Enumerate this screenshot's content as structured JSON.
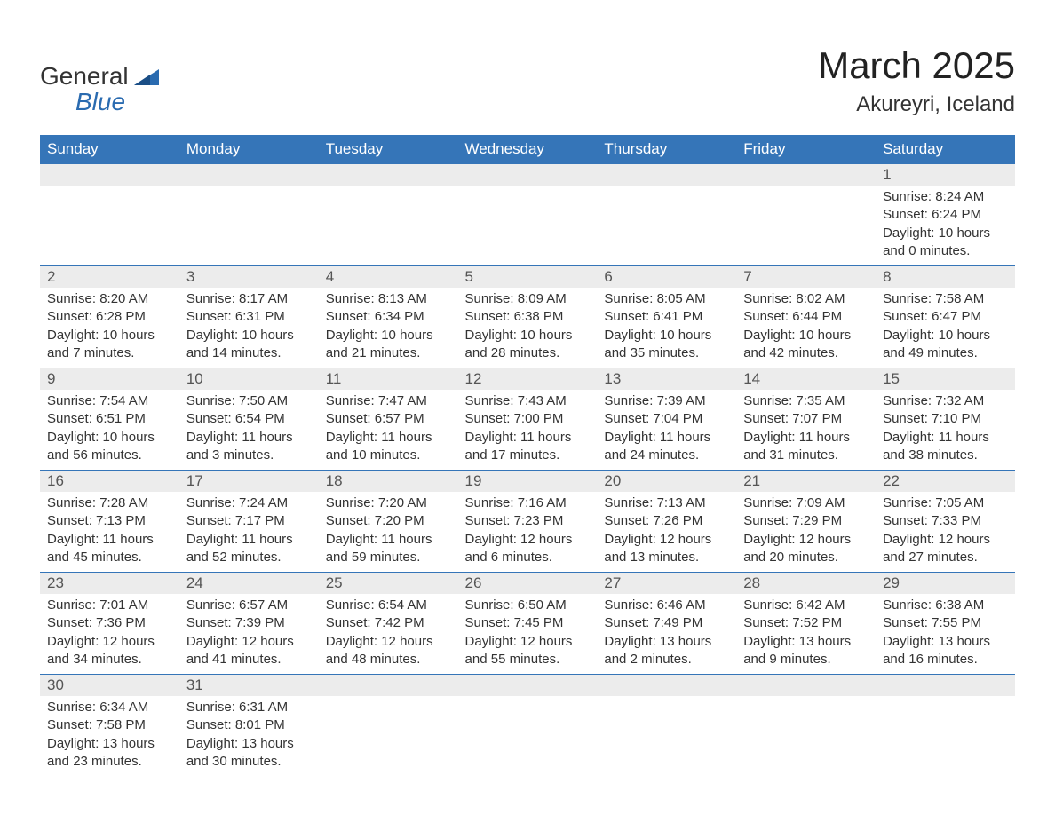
{
  "brand": {
    "name_part1": "General",
    "name_part2": "Blue"
  },
  "title": "March 2025",
  "location": "Akureyri, Iceland",
  "colors": {
    "header_bg": "#3575b8",
    "header_text": "#ffffff",
    "daynum_bg": "#ececec",
    "row_border": "#3575b8",
    "body_text": "#333333",
    "brand_blue": "#2a6bb0"
  },
  "typography": {
    "title_fontsize": 42,
    "location_fontsize": 24,
    "dayheader_fontsize": 17,
    "cell_fontsize": 15
  },
  "day_headers": [
    "Sunday",
    "Monday",
    "Tuesday",
    "Wednesday",
    "Thursday",
    "Friday",
    "Saturday"
  ],
  "weeks": [
    [
      null,
      null,
      null,
      null,
      null,
      null,
      {
        "n": "1",
        "sunrise": "Sunrise: 8:24 AM",
        "sunset": "Sunset: 6:24 PM",
        "day1": "Daylight: 10 hours",
        "day2": "and 0 minutes."
      }
    ],
    [
      {
        "n": "2",
        "sunrise": "Sunrise: 8:20 AM",
        "sunset": "Sunset: 6:28 PM",
        "day1": "Daylight: 10 hours",
        "day2": "and 7 minutes."
      },
      {
        "n": "3",
        "sunrise": "Sunrise: 8:17 AM",
        "sunset": "Sunset: 6:31 PM",
        "day1": "Daylight: 10 hours",
        "day2": "and 14 minutes."
      },
      {
        "n": "4",
        "sunrise": "Sunrise: 8:13 AM",
        "sunset": "Sunset: 6:34 PM",
        "day1": "Daylight: 10 hours",
        "day2": "and 21 minutes."
      },
      {
        "n": "5",
        "sunrise": "Sunrise: 8:09 AM",
        "sunset": "Sunset: 6:38 PM",
        "day1": "Daylight: 10 hours",
        "day2": "and 28 minutes."
      },
      {
        "n": "6",
        "sunrise": "Sunrise: 8:05 AM",
        "sunset": "Sunset: 6:41 PM",
        "day1": "Daylight: 10 hours",
        "day2": "and 35 minutes."
      },
      {
        "n": "7",
        "sunrise": "Sunrise: 8:02 AM",
        "sunset": "Sunset: 6:44 PM",
        "day1": "Daylight: 10 hours",
        "day2": "and 42 minutes."
      },
      {
        "n": "8",
        "sunrise": "Sunrise: 7:58 AM",
        "sunset": "Sunset: 6:47 PM",
        "day1": "Daylight: 10 hours",
        "day2": "and 49 minutes."
      }
    ],
    [
      {
        "n": "9",
        "sunrise": "Sunrise: 7:54 AM",
        "sunset": "Sunset: 6:51 PM",
        "day1": "Daylight: 10 hours",
        "day2": "and 56 minutes."
      },
      {
        "n": "10",
        "sunrise": "Sunrise: 7:50 AM",
        "sunset": "Sunset: 6:54 PM",
        "day1": "Daylight: 11 hours",
        "day2": "and 3 minutes."
      },
      {
        "n": "11",
        "sunrise": "Sunrise: 7:47 AM",
        "sunset": "Sunset: 6:57 PM",
        "day1": "Daylight: 11 hours",
        "day2": "and 10 minutes."
      },
      {
        "n": "12",
        "sunrise": "Sunrise: 7:43 AM",
        "sunset": "Sunset: 7:00 PM",
        "day1": "Daylight: 11 hours",
        "day2": "and 17 minutes."
      },
      {
        "n": "13",
        "sunrise": "Sunrise: 7:39 AM",
        "sunset": "Sunset: 7:04 PM",
        "day1": "Daylight: 11 hours",
        "day2": "and 24 minutes."
      },
      {
        "n": "14",
        "sunrise": "Sunrise: 7:35 AM",
        "sunset": "Sunset: 7:07 PM",
        "day1": "Daylight: 11 hours",
        "day2": "and 31 minutes."
      },
      {
        "n": "15",
        "sunrise": "Sunrise: 7:32 AM",
        "sunset": "Sunset: 7:10 PM",
        "day1": "Daylight: 11 hours",
        "day2": "and 38 minutes."
      }
    ],
    [
      {
        "n": "16",
        "sunrise": "Sunrise: 7:28 AM",
        "sunset": "Sunset: 7:13 PM",
        "day1": "Daylight: 11 hours",
        "day2": "and 45 minutes."
      },
      {
        "n": "17",
        "sunrise": "Sunrise: 7:24 AM",
        "sunset": "Sunset: 7:17 PM",
        "day1": "Daylight: 11 hours",
        "day2": "and 52 minutes."
      },
      {
        "n": "18",
        "sunrise": "Sunrise: 7:20 AM",
        "sunset": "Sunset: 7:20 PM",
        "day1": "Daylight: 11 hours",
        "day2": "and 59 minutes."
      },
      {
        "n": "19",
        "sunrise": "Sunrise: 7:16 AM",
        "sunset": "Sunset: 7:23 PM",
        "day1": "Daylight: 12 hours",
        "day2": "and 6 minutes."
      },
      {
        "n": "20",
        "sunrise": "Sunrise: 7:13 AM",
        "sunset": "Sunset: 7:26 PM",
        "day1": "Daylight: 12 hours",
        "day2": "and 13 minutes."
      },
      {
        "n": "21",
        "sunrise": "Sunrise: 7:09 AM",
        "sunset": "Sunset: 7:29 PM",
        "day1": "Daylight: 12 hours",
        "day2": "and 20 minutes."
      },
      {
        "n": "22",
        "sunrise": "Sunrise: 7:05 AM",
        "sunset": "Sunset: 7:33 PM",
        "day1": "Daylight: 12 hours",
        "day2": "and 27 minutes."
      }
    ],
    [
      {
        "n": "23",
        "sunrise": "Sunrise: 7:01 AM",
        "sunset": "Sunset: 7:36 PM",
        "day1": "Daylight: 12 hours",
        "day2": "and 34 minutes."
      },
      {
        "n": "24",
        "sunrise": "Sunrise: 6:57 AM",
        "sunset": "Sunset: 7:39 PM",
        "day1": "Daylight: 12 hours",
        "day2": "and 41 minutes."
      },
      {
        "n": "25",
        "sunrise": "Sunrise: 6:54 AM",
        "sunset": "Sunset: 7:42 PM",
        "day1": "Daylight: 12 hours",
        "day2": "and 48 minutes."
      },
      {
        "n": "26",
        "sunrise": "Sunrise: 6:50 AM",
        "sunset": "Sunset: 7:45 PM",
        "day1": "Daylight: 12 hours",
        "day2": "and 55 minutes."
      },
      {
        "n": "27",
        "sunrise": "Sunrise: 6:46 AM",
        "sunset": "Sunset: 7:49 PM",
        "day1": "Daylight: 13 hours",
        "day2": "and 2 minutes."
      },
      {
        "n": "28",
        "sunrise": "Sunrise: 6:42 AM",
        "sunset": "Sunset: 7:52 PM",
        "day1": "Daylight: 13 hours",
        "day2": "and 9 minutes."
      },
      {
        "n": "29",
        "sunrise": "Sunrise: 6:38 AM",
        "sunset": "Sunset: 7:55 PM",
        "day1": "Daylight: 13 hours",
        "day2": "and 16 minutes."
      }
    ],
    [
      {
        "n": "30",
        "sunrise": "Sunrise: 6:34 AM",
        "sunset": "Sunset: 7:58 PM",
        "day1": "Daylight: 13 hours",
        "day2": "and 23 minutes."
      },
      {
        "n": "31",
        "sunrise": "Sunrise: 6:31 AM",
        "sunset": "Sunset: 8:01 PM",
        "day1": "Daylight: 13 hours",
        "day2": "and 30 minutes."
      },
      null,
      null,
      null,
      null,
      null
    ]
  ]
}
